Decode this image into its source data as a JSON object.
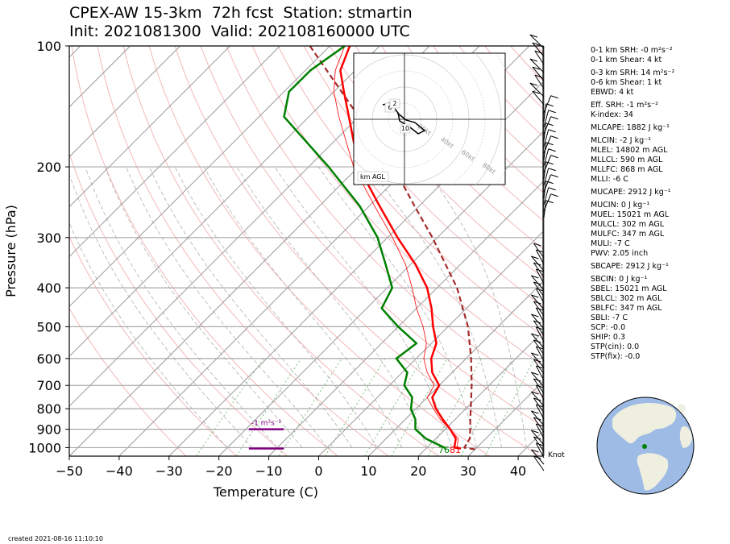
{
  "title": {
    "line1": "CPEX-AW 15-3km  72h fcst  Station: stmartin",
    "line2": "Init: 2021081300  Valid: 202108160000 UTC"
  },
  "chart_data": {
    "type": "skew-t",
    "xlabel": "Temperature (C)",
    "ylabel": "Pressure (hPa)",
    "x_ticks": [
      "−50",
      "−40",
      "−30",
      "−20",
      "−10",
      "0",
      "10",
      "20",
      "30",
      "40"
    ],
    "y_ticks": [
      "100",
      "200",
      "300",
      "400",
      "500",
      "600",
      "700",
      "800",
      "900",
      "1000"
    ],
    "xlim": [
      -50,
      45
    ],
    "ylim": [
      1050,
      100
    ],
    "temperature": [
      [
        1005,
        27
      ],
      [
        1000,
        25.5
      ],
      [
        950,
        24
      ],
      [
        900,
        21
      ],
      [
        850,
        17.5
      ],
      [
        800,
        14
      ],
      [
        750,
        11
      ],
      [
        700,
        10
      ],
      [
        650,
        6
      ],
      [
        600,
        3
      ],
      [
        550,
        1
      ],
      [
        500,
        -3
      ],
      [
        450,
        -7
      ],
      [
        400,
        -12
      ],
      [
        350,
        -19
      ],
      [
        300,
        -28
      ],
      [
        250,
        -38
      ],
      [
        200,
        -50
      ],
      [
        150,
        -62
      ],
      [
        130,
        -68
      ],
      [
        115,
        -73
      ],
      [
        100,
        -76
      ]
    ],
    "dewpoint": [
      [
        1005,
        24
      ],
      [
        1000,
        23.5
      ],
      [
        950,
        18
      ],
      [
        900,
        14
      ],
      [
        850,
        12
      ],
      [
        800,
        9
      ],
      [
        750,
        7
      ],
      [
        700,
        3
      ],
      [
        650,
        1
      ],
      [
        600,
        -4
      ],
      [
        550,
        -3
      ],
      [
        500,
        -10
      ],
      [
        450,
        -17
      ],
      [
        400,
        -19
      ],
      [
        350,
        -25
      ],
      [
        300,
        -32
      ],
      [
        250,
        -42
      ],
      [
        200,
        -56
      ],
      [
        150,
        -75
      ],
      [
        130,
        -79
      ],
      [
        115,
        -79
      ],
      [
        100,
        -77
      ]
    ],
    "virtual_temperature": [
      [
        1005,
        27
      ],
      [
        1000,
        26
      ],
      [
        950,
        24.5
      ],
      [
        900,
        21
      ],
      [
        850,
        17
      ],
      [
        800,
        13.5
      ],
      [
        750,
        10
      ],
      [
        700,
        9
      ],
      [
        650,
        5
      ],
      [
        600,
        1.5
      ],
      [
        550,
        -1
      ],
      [
        500,
        -5
      ],
      [
        450,
        -10
      ],
      [
        400,
        -15
      ],
      [
        350,
        -21
      ],
      [
        300,
        -29
      ],
      [
        250,
        -39
      ],
      [
        200,
        -51
      ],
      [
        150,
        -64
      ],
      [
        130,
        -70
      ],
      [
        115,
        -74
      ],
      [
        100,
        -77
      ]
    ],
    "parcel": [
      [
        1010,
        30
      ],
      [
        1000,
        27.5
      ],
      [
        950,
        26.8
      ],
      [
        900,
        25
      ],
      [
        850,
        23
      ],
      [
        800,
        21
      ],
      [
        700,
        16.5
      ],
      [
        600,
        11
      ],
      [
        500,
        4
      ],
      [
        400,
        -6
      ],
      [
        300,
        -21
      ],
      [
        250,
        -31
      ],
      [
        200,
        -43
      ],
      [
        150,
        -60
      ],
      [
        100,
        -84
      ]
    ],
    "srh_labels": [
      {
        "text": "-1 m²s⁻²",
        "pressure": 900,
        "x1": -14,
        "x2": -7
      }
    ],
    "shear_bar": {
      "pressure": 1005,
      "x1": -14,
      "x2": -7
    },
    "surface_labels": {
      "dewpoint": "76",
      "temperature": "81"
    },
    "hodograph": {
      "ring_labels": [
        "20kt",
        "40kt",
        "60kt",
        "80kt"
      ],
      "height_labels": [
        "10",
        "6",
        "2"
      ],
      "footer": "km AGL"
    },
    "wind_units": "Knot",
    "colors": {
      "temperature": "#ff0000",
      "dewpoint": "#008000",
      "virtual": "#00bcd4",
      "parcel": "#a52a2a",
      "srh": "#800080",
      "isotherm": "#999999",
      "dry_adiabat": "#f4b8b8",
      "moist_adiabat": "#b0b0b0",
      "mixing_ratio": "#7fc07f"
    }
  },
  "parameters": [
    "0-1 km SRH: -0 m²s⁻²",
    "0-1 km Shear: 4 kt",
    "0-3 km SRH: 14 m²s⁻²",
    "0-6 km Shear: 1 kt",
    "EBWD: 4 kt",
    "Eff. SRH: -1 m²s⁻²",
    "K-index: 34",
    "MLCAPE: 1882 J kg⁻¹",
    "MLCIN: -2 J kg⁻¹",
    "MLEL: 14802 m AGL",
    "MLLCL: 590 m AGL",
    "MLLFC: 868 m AGL",
    "MLLI: -6 C",
    "MUCAPE: 2912 J kg⁻¹",
    "MUCIN: 0 J kg⁻¹",
    "MUEL: 15021 m AGL",
    "MULCL: 302 m AGL",
    "MULFC: 347 m AGL",
    "MULI: -7 C",
    "PWV: 2.05 inch",
    "SBCAPE: 2912 J kg⁻¹",
    "SBCIN: 0 J kg⁻¹",
    "SBEL: 15021 m AGL",
    "SBLCL: 302 m AGL",
    "SBLFC: 347 m AGL",
    "SBLI: -7 C",
    "SCP: -0.0",
    "SHIP: 0.3",
    "STP(cin): 0.0",
    "STP(fix): -0.0"
  ],
  "footer": "created 2021-08-16 11:10:10"
}
